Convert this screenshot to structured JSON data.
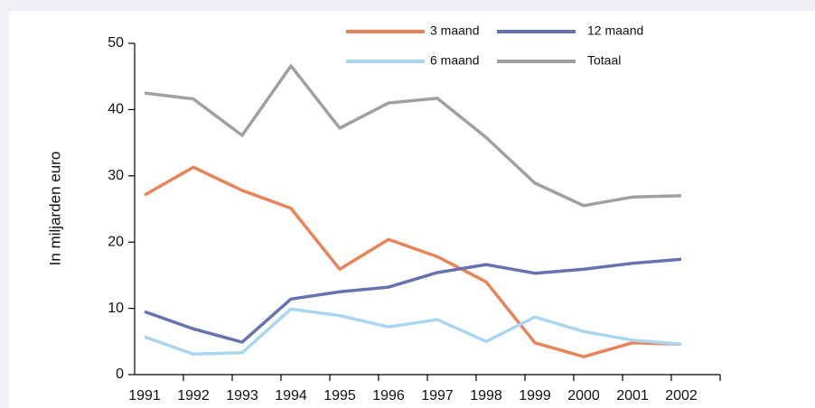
{
  "chart_data": {
    "type": "line",
    "y_label": "In miljarden euro",
    "categories": [
      "1991",
      "1992",
      "1993",
      "1994",
      "1995",
      "1996",
      "1997",
      "1998",
      "1999",
      "2000",
      "2001",
      "2002"
    ],
    "series": [
      {
        "name": "3 maand",
        "color": "#e8845a",
        "values": [
          27.1,
          31.3,
          27.8,
          25.1,
          15.9,
          20.4,
          17.8,
          14.0,
          4.8,
          2.7,
          4.8,
          4.6
        ]
      },
      {
        "name": "12 maand",
        "color": "#6673b0",
        "values": [
          9.5,
          6.9,
          4.9,
          11.4,
          12.5,
          13.2,
          15.4,
          16.6,
          15.3,
          15.9,
          16.8,
          17.4
        ]
      },
      {
        "name": "6 maand",
        "color": "#aad6f0",
        "values": [
          5.7,
          3.1,
          3.3,
          9.9,
          8.9,
          7.2,
          8.3,
          5.0,
          8.7,
          6.5,
          5.2,
          4.6
        ]
      },
      {
        "name": "Totaal",
        "color": "#a0a0a0",
        "values": [
          42.5,
          41.6,
          36.1,
          46.6,
          37.2,
          41.0,
          41.7,
          35.8,
          28.9,
          25.5,
          26.8,
          27.0
        ]
      }
    ],
    "ylim": [
      0,
      50
    ],
    "yticks": [
      0,
      10,
      20,
      30,
      40,
      50
    ],
    "grid": false
  }
}
